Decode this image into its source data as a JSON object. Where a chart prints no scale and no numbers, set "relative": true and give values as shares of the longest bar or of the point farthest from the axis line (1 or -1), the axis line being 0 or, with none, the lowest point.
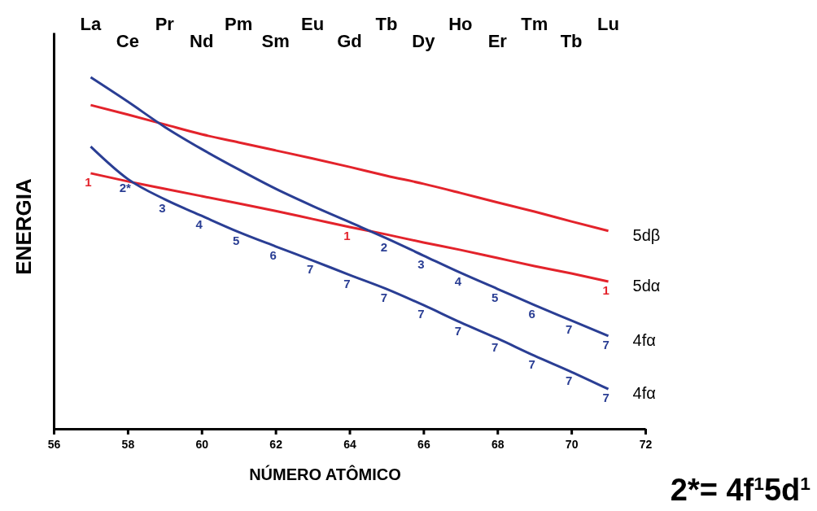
{
  "chart_data": {
    "type": "line",
    "relative": true,
    "xlabel": "NÚMERO ATÔMICO",
    "ylabel": "ENERGIA",
    "xlim": [
      56,
      72
    ],
    "xticks": [
      56,
      58,
      60,
      62,
      64,
      66,
      68,
      70,
      72
    ],
    "x": [
      57,
      58,
      59,
      60,
      61,
      62,
      63,
      64,
      65,
      66,
      67,
      68,
      69,
      70,
      71
    ],
    "marker": "none",
    "line_style": "solid",
    "legend": false,
    "grid": false,
    "series": [
      {
        "name": "5dβ",
        "color": "#e3232b",
        "values": [
          0.921,
          0.894,
          0.866,
          0.838,
          0.815,
          0.792,
          0.769,
          0.745,
          0.72,
          0.697,
          0.671,
          0.644,
          0.618,
          0.59,
          0.563
        ]
      },
      {
        "name": "5dα",
        "color": "#e3232b",
        "values": [
          0.727,
          0.704,
          0.683,
          0.662,
          0.641,
          0.62,
          0.597,
          0.574,
          0.553,
          0.53,
          0.509,
          0.486,
          0.463,
          0.442,
          0.419
        ]
      },
      {
        "name": "4fα",
        "color": "#2a3e94",
        "values": [
          1.0,
          0.931,
          0.859,
          0.796,
          0.738,
          0.683,
          0.634,
          0.588,
          0.542,
          0.493,
          0.444,
          0.398,
          0.352,
          0.308,
          0.264
        ]
      },
      {
        "name": "4fα",
        "color": "#2a3e94",
        "values": [
          0.803,
          0.711,
          0.653,
          0.606,
          0.56,
          0.519,
          0.479,
          0.438,
          0.398,
          0.352,
          0.303,
          0.257,
          0.208,
          0.162,
          0.113
        ]
      }
    ],
    "annotations": [
      "La",
      "Ce",
      "Pr",
      "Nd",
      "Pm",
      "Sm",
      "Eu",
      "Gd",
      "Tb",
      "Dy",
      "Ho",
      "Er",
      "Tm",
      "Tb",
      "Lu",
      {
        "text": "1",
        "x": 57,
        "y": 0.727
      },
      {
        "text": "1",
        "x": 64,
        "y": 0.574
      },
      {
        "text": "1",
        "x": 71,
        "y": 0.419
      },
      {
        "text": "2",
        "x": 65,
        "y": 0.542
      },
      {
        "text": "3",
        "x": 66,
        "y": 0.493
      },
      {
        "text": "4",
        "x": 67,
        "y": 0.444
      },
      {
        "text": "5",
        "x": 68,
        "y": 0.398
      },
      {
        "text": "6",
        "x": 69,
        "y": 0.352
      },
      {
        "text": "7",
        "x": 70,
        "y": 0.308
      },
      {
        "text": "7",
        "x": 71,
        "y": 0.264
      },
      {
        "text": "2*",
        "x": 58,
        "y": 0.711
      },
      {
        "text": "3",
        "x": 59,
        "y": 0.653
      },
      {
        "text": "4",
        "x": 60,
        "y": 0.606
      },
      {
        "text": "5",
        "x": 61,
        "y": 0.56
      },
      {
        "text": "6",
        "x": 62,
        "y": 0.519
      },
      {
        "text": "7",
        "x": 63,
        "y": 0.479
      },
      {
        "text": "7",
        "x": 64,
        "y": 0.438
      },
      {
        "text": "7",
        "x": 65,
        "y": 0.398
      },
      {
        "text": "7",
        "x": 66,
        "y": 0.352
      },
      {
        "text": "7",
        "x": 67,
        "y": 0.303
      },
      {
        "text": "7",
        "x": 68,
        "y": 0.257
      },
      {
        "text": "7",
        "x": 69,
        "y": 0.208
      },
      {
        "text": "7",
        "x": 70,
        "y": 0.162
      },
      {
        "text": "7",
        "x": 71,
        "y": 0.113
      },
      "2*= 4f$^{1}$5d$^{1}$"
    ]
  }
}
